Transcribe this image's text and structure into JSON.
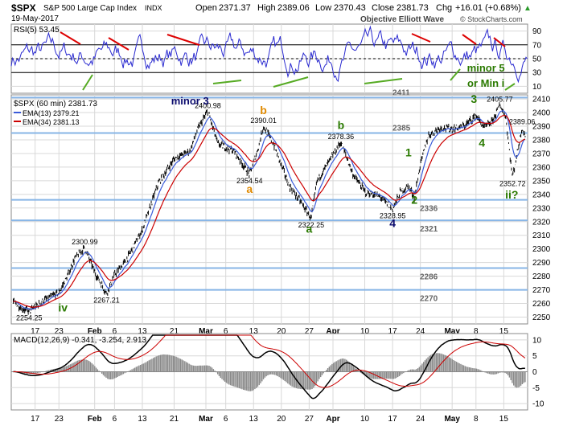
{
  "header": {
    "symbol": "$SPX",
    "name": "S&P 500 Large Cap Index",
    "exchange": "INDX",
    "date": "19-May-2017",
    "open_label": "Open",
    "open": "2371.37",
    "high_label": "High",
    "high": "2389.06",
    "low_label": "Low",
    "low": "2370.43",
    "close_label": "Close",
    "close": "2381.73",
    "chg_label": "Chg",
    "chg": "+16.01 (+0.68%)",
    "arrow": "▲",
    "watermark": "© StockCharts.com",
    "subtitle": "Objective Elliott Wave"
  },
  "colors": {
    "background": "#ffffff",
    "grid": "#d8d8d8",
    "price": "#000000",
    "ema13": "#3a5bd9",
    "ema34": "#cc0000",
    "rsi": "#2a2ad0",
    "level": "#87b5e6",
    "wave_dark": "#0b0b6e",
    "wave_green": "#2a7a00",
    "wave_orange": "#e08a00",
    "rsi_band": "#000000"
  },
  "chart_data": [
    {
      "type": "line",
      "panel": "RSI",
      "legend": "RSI(5) 53.45",
      "ylim": [
        0,
        100
      ],
      "y_ticks": [
        10,
        30,
        50,
        70,
        90
      ],
      "series": [
        {
          "name": "RSI(5)",
          "last": 53.45
        }
      ]
    },
    {
      "type": "line",
      "panel": "price",
      "legend_main": "$SPX (60 min) 2381.73",
      "legend_ema13": "EMA(13) 2379.21",
      "legend_ema34": "EMA(34) 2381.13",
      "ylim": [
        2245,
        2413
      ],
      "y_ticks": [
        2250,
        2260,
        2270,
        2280,
        2290,
        2300,
        2310,
        2320,
        2330,
        2340,
        2350,
        2360,
        2370,
        2380,
        2390,
        2400,
        2410
      ],
      "x_ticks": [
        "17",
        "23",
        "Feb",
        "6",
        "13",
        "21",
        "Mar",
        "6",
        "13",
        "20",
        "27",
        "Apr",
        "10",
        "17",
        "24",
        "May",
        "8",
        "15"
      ],
      "x_tick_days": [
        16,
        22,
        31,
        36,
        43,
        51,
        59,
        64,
        71,
        78,
        85,
        91,
        99,
        106,
        113,
        121,
        127,
        134
      ],
      "x_range_days": [
        10,
        140
      ],
      "bold_ticks": [
        "Feb",
        "Mar",
        "Apr",
        "May"
      ],
      "key_points": [
        {
          "day": 10.5,
          "price": 2261
        },
        {
          "day": 13,
          "price": 2256
        },
        {
          "day": 14.5,
          "price": 2254.25
        },
        {
          "day": 18,
          "price": 2262
        },
        {
          "day": 22,
          "price": 2268
        },
        {
          "day": 24,
          "price": 2279
        },
        {
          "day": 26,
          "price": 2293
        },
        {
          "day": 28.5,
          "price": 2300.99
        },
        {
          "day": 31,
          "price": 2283
        },
        {
          "day": 34,
          "price": 2267.21
        },
        {
          "day": 36,
          "price": 2281
        },
        {
          "day": 39,
          "price": 2292
        },
        {
          "day": 43,
          "price": 2314
        },
        {
          "day": 47,
          "price": 2348
        },
        {
          "day": 51,
          "price": 2366
        },
        {
          "day": 55,
          "price": 2372
        },
        {
          "day": 57,
          "price": 2388
        },
        {
          "day": 59.5,
          "price": 2400.98
        },
        {
          "day": 62,
          "price": 2377
        },
        {
          "day": 66,
          "price": 2372
        },
        {
          "day": 70,
          "price": 2354.54
        },
        {
          "day": 72,
          "price": 2372
        },
        {
          "day": 73.5,
          "price": 2390.01
        },
        {
          "day": 76,
          "price": 2377
        },
        {
          "day": 80,
          "price": 2346
        },
        {
          "day": 83,
          "price": 2334
        },
        {
          "day": 85.5,
          "price": 2322.25
        },
        {
          "day": 87,
          "price": 2350
        },
        {
          "day": 90,
          "price": 2364
        },
        {
          "day": 93,
          "price": 2378.36
        },
        {
          "day": 96,
          "price": 2355
        },
        {
          "day": 99,
          "price": 2342
        },
        {
          "day": 103,
          "price": 2338
        },
        {
          "day": 106,
          "price": 2328.95
        },
        {
          "day": 108,
          "price": 2342
        },
        {
          "day": 110,
          "price": 2346
        },
        {
          "day": 111.5,
          "price": 2338
        },
        {
          "day": 113,
          "price": 2362
        },
        {
          "day": 115,
          "price": 2383
        },
        {
          "day": 118,
          "price": 2389
        },
        {
          "day": 121,
          "price": 2388
        },
        {
          "day": 124,
          "price": 2390
        },
        {
          "day": 127,
          "price": 2398
        },
        {
          "day": 129,
          "price": 2389
        },
        {
          "day": 131,
          "price": 2393
        },
        {
          "day": 133,
          "price": 2405.77
        },
        {
          "day": 134.5,
          "price": 2397
        },
        {
          "day": 135.5,
          "price": 2370
        },
        {
          "day": 136.2,
          "price": 2352.72
        },
        {
          "day": 137.5,
          "price": 2372
        },
        {
          "day": 138.6,
          "price": 2389.06
        },
        {
          "day": 139.5,
          "price": 2381.73
        }
      ],
      "price_labels": [
        {
          "text": "2254.25",
          "day": 14.5,
          "price": 2254.25,
          "pos": "below"
        },
        {
          "text": "2300.99",
          "day": 28.5,
          "price": 2300.99,
          "pos": "above"
        },
        {
          "text": "2267.21",
          "day": 34,
          "price": 2267.21,
          "pos": "below"
        },
        {
          "text": "2400.98",
          "day": 59.5,
          "price": 2400.98,
          "pos": "above"
        },
        {
          "text": "2354.54",
          "day": 70,
          "price": 2354.54,
          "pos": "below"
        },
        {
          "text": "2390.01",
          "day": 73.5,
          "price": 2390.01,
          "pos": "above"
        },
        {
          "text": "2322.25",
          "day": 85.5,
          "price": 2322.25,
          "pos": "below"
        },
        {
          "text": "2378.36",
          "day": 93,
          "price": 2378.36,
          "pos": "above"
        },
        {
          "text": "2328.95",
          "day": 106,
          "price": 2328.95,
          "pos": "below"
        },
        {
          "text": "2405.77",
          "day": 133,
          "price": 2405.77,
          "pos": "above"
        },
        {
          "text": "2389.06",
          "day": 138.6,
          "price": 2389.06,
          "pos": "above"
        },
        {
          "text": "2352.72",
          "day": 136.2,
          "price": 2352.72,
          "pos": "below"
        }
      ],
      "levels": [
        {
          "price": 2411,
          "label": "2411"
        },
        {
          "price": 2385,
          "label": "2385"
        },
        {
          "price": 2336,
          "label": "2336"
        },
        {
          "price": 2321,
          "label": "2321"
        },
        {
          "price": 2286,
          "label": "2286"
        },
        {
          "price": 2270,
          "label": "2270"
        }
      ],
      "annotations": [
        {
          "text": "minor 3",
          "day": 55,
          "price": 2406,
          "color": "wave_dark"
        },
        {
          "text": "b",
          "day": 73.5,
          "price": 2399,
          "color": "wave_orange"
        },
        {
          "text": "a",
          "day": 70,
          "price": 2341,
          "color": "wave_orange"
        },
        {
          "text": "b",
          "day": 93,
          "price": 2388,
          "color": "wave_green"
        },
        {
          "text": "a",
          "day": 85,
          "price": 2312,
          "color": "wave_green"
        },
        {
          "text": "1",
          "day": 110,
          "price": 2368,
          "color": "wave_green"
        },
        {
          "text": "2",
          "day": 111.5,
          "price": 2333,
          "color": "wave_green"
        },
        {
          "text": "4",
          "day": 106,
          "price": 2316,
          "color": "wave_dark"
        },
        {
          "text": "3",
          "day": 126.5,
          "price": 2407,
          "color": "wave_green"
        },
        {
          "text": "4",
          "day": 128.5,
          "price": 2375,
          "color": "wave_green"
        },
        {
          "text": "ii?",
          "day": 136,
          "price": 2337,
          "color": "wave_green"
        },
        {
          "text": "iv",
          "day": 23,
          "price": 2254,
          "color": "wave_green"
        },
        {
          "text": "minor 5",
          "day": 129.5,
          "price": 2430,
          "color": "wave_green"
        },
        {
          "text": "or Min i",
          "day": 129.5,
          "price": 2419,
          "color": "wave_green"
        }
      ]
    },
    {
      "type": "line",
      "panel": "MACD",
      "legend": "MACD(12,26,9) -0.341, -3.254, 2.913",
      "ylim": [
        -12,
        12
      ],
      "y_ticks": [
        -10,
        -5,
        0,
        5,
        10
      ],
      "series": [
        {
          "name": "MACD",
          "last": -0.341
        },
        {
          "name": "Signal",
          "last": -3.254
        },
        {
          "name": "Histogram",
          "last": 2.913
        }
      ]
    }
  ]
}
